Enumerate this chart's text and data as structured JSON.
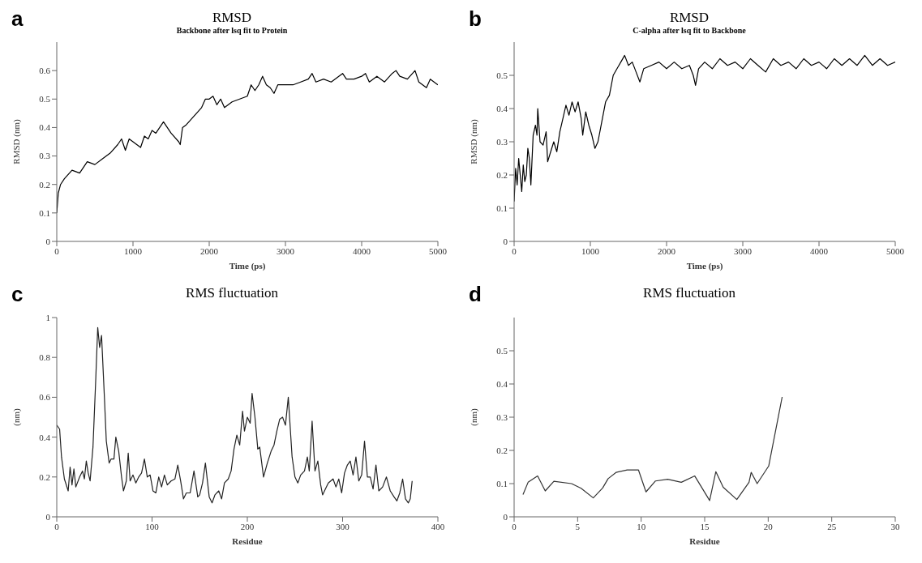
{
  "chart_data": [
    {
      "type": "line",
      "title": "RMSD",
      "subtitle": "Backbone after lsq fit to Protein",
      "xlabel": "Time (ps)",
      "ylabel": "RMSD (nm)",
      "annotations": [
        "a"
      ],
      "marker": "none",
      "xlim": [
        0,
        5000
      ],
      "xticks": [
        0,
        1000,
        2000,
        3000,
        4000,
        5000
      ],
      "ylim": [
        0,
        0.7
      ],
      "yticks": [
        0,
        0.1,
        0.2,
        0.3,
        0.4,
        0.5,
        0.6
      ],
      "x": [
        0,
        20,
        50,
        100,
        200,
        300,
        400,
        500,
        600,
        700,
        800,
        850,
        900,
        950,
        1000,
        1050,
        1100,
        1150,
        1200,
        1250,
        1300,
        1400,
        1500,
        1600,
        1620,
        1650,
        1700,
        1800,
        1900,
        1950,
        2000,
        2050,
        2100,
        2150,
        2200,
        2300,
        2400,
        2500,
        2550,
        2600,
        2650,
        2700,
        2750,
        2800,
        2850,
        2900,
        3000,
        3100,
        3200,
        3300,
        3350,
        3400,
        3500,
        3600,
        3700,
        3750,
        3800,
        3900,
        4000,
        4050,
        4100,
        4200,
        4250,
        4300,
        4400,
        4450,
        4500,
        4600,
        4700,
        4750,
        4800,
        4850,
        4900,
        5000
      ],
      "series": [
        {
          "color": "#000000",
          "values": [
            0.1,
            0.17,
            0.2,
            0.22,
            0.25,
            0.24,
            0.28,
            0.27,
            0.29,
            0.31,
            0.34,
            0.36,
            0.32,
            0.36,
            0.35,
            0.34,
            0.33,
            0.37,
            0.36,
            0.39,
            0.38,
            0.42,
            0.38,
            0.35,
            0.34,
            0.4,
            0.41,
            0.44,
            0.47,
            0.5,
            0.5,
            0.51,
            0.48,
            0.5,
            0.47,
            0.49,
            0.5,
            0.51,
            0.55,
            0.53,
            0.55,
            0.58,
            0.55,
            0.54,
            0.52,
            0.55,
            0.55,
            0.55,
            0.56,
            0.57,
            0.59,
            0.56,
            0.57,
            0.56,
            0.58,
            0.59,
            0.57,
            0.57,
            0.58,
            0.59,
            0.56,
            0.58,
            0.57,
            0.56,
            0.59,
            0.6,
            0.58,
            0.57,
            0.6,
            0.56,
            0.55,
            0.54,
            0.57,
            0.55
          ]
        }
      ]
    },
    {
      "type": "line",
      "title": "RMSD",
      "subtitle": "C-alpha after lsq fit to Backbone",
      "xlabel": "Time (ps)",
      "ylabel": "RMSD (nm)",
      "annotations": [
        "b"
      ],
      "marker": "none",
      "xlim": [
        0,
        5000
      ],
      "xticks": [
        0,
        1000,
        2000,
        3000,
        4000,
        5000
      ],
      "ylim": [
        0,
        0.6
      ],
      "yticks": [
        0,
        0.1,
        0.2,
        0.3,
        0.4,
        0.5
      ],
      "x": [
        0,
        20,
        40,
        60,
        80,
        100,
        120,
        140,
        160,
        180,
        200,
        220,
        250,
        280,
        300,
        310,
        340,
        380,
        420,
        440,
        480,
        520,
        560,
        600,
        640,
        680,
        720,
        760,
        800,
        840,
        880,
        900,
        940,
        980,
        1020,
        1060,
        1100,
        1150,
        1200,
        1250,
        1300,
        1350,
        1400,
        1450,
        1500,
        1550,
        1600,
        1650,
        1700,
        1800,
        1900,
        2000,
        2100,
        2200,
        2300,
        2350,
        2380,
        2420,
        2500,
        2600,
        2700,
        2800,
        2900,
        3000,
        3100,
        3200,
        3300,
        3400,
        3500,
        3600,
        3700,
        3800,
        3900,
        4000,
        4100,
        4200,
        4300,
        4400,
        4500,
        4600,
        4700,
        4800,
        4900,
        5000
      ],
      "series": [
        {
          "color": "#000000",
          "values": [
            0.12,
            0.22,
            0.17,
            0.25,
            0.2,
            0.15,
            0.23,
            0.18,
            0.2,
            0.28,
            0.25,
            0.17,
            0.32,
            0.35,
            0.32,
            0.4,
            0.3,
            0.29,
            0.33,
            0.24,
            0.27,
            0.3,
            0.27,
            0.33,
            0.37,
            0.41,
            0.38,
            0.42,
            0.39,
            0.42,
            0.37,
            0.32,
            0.39,
            0.35,
            0.32,
            0.28,
            0.3,
            0.36,
            0.42,
            0.44,
            0.5,
            0.52,
            0.54,
            0.56,
            0.53,
            0.54,
            0.51,
            0.48,
            0.52,
            0.53,
            0.54,
            0.52,
            0.54,
            0.52,
            0.53,
            0.5,
            0.47,
            0.52,
            0.54,
            0.52,
            0.55,
            0.53,
            0.54,
            0.52,
            0.55,
            0.53,
            0.51,
            0.55,
            0.53,
            0.54,
            0.52,
            0.55,
            0.53,
            0.54,
            0.52,
            0.55,
            0.53,
            0.55,
            0.53,
            0.56,
            0.53,
            0.55,
            0.53,
            0.54
          ]
        }
      ]
    },
    {
      "type": "line",
      "title": "RMS fluctuation",
      "xlabel": "Residue",
      "ylabel": "(nm)",
      "annotations": [
        "c"
      ],
      "marker": "none",
      "xlim": [
        0,
        400
      ],
      "xticks": [
        0,
        100,
        200,
        300,
        400
      ],
      "ylim": [
        0,
        1
      ],
      "yticks": [
        0,
        0.2,
        0.4,
        0.6,
        0.8,
        1
      ],
      "x": [
        0,
        3,
        5,
        8,
        12,
        14,
        16,
        18,
        20,
        24,
        27,
        29,
        31,
        33,
        35,
        38,
        41,
        43,
        45,
        47,
        50,
        52,
        55,
        57,
        60,
        62,
        65,
        68,
        70,
        73,
        75,
        77,
        80,
        83,
        86,
        89,
        92,
        95,
        98,
        101,
        104,
        107,
        110,
        113,
        116,
        120,
        124,
        127,
        130,
        133,
        136,
        140,
        144,
        148,
        150,
        153,
        156,
        160,
        163,
        166,
        170,
        173,
        176,
        180,
        183,
        186,
        189,
        192,
        195,
        197,
        200,
        203,
        205,
        208,
        211,
        213,
        217,
        221,
        225,
        228,
        231,
        234,
        237,
        240,
        243,
        247,
        250,
        253,
        256,
        260,
        263,
        265,
        268,
        271,
        274,
        277,
        279,
        282,
        285,
        290,
        293,
        296,
        299,
        302,
        305,
        308,
        311,
        314,
        317,
        320,
        323,
        326,
        329,
        332,
        335,
        338,
        342,
        346,
        350,
        354,
        357,
        360,
        363,
        366,
        369,
        371,
        373
      ],
      "series": [
        {
          "color": "#222222",
          "values": [
            0.46,
            0.44,
            0.3,
            0.19,
            0.13,
            0.25,
            0.16,
            0.24,
            0.15,
            0.2,
            0.23,
            0.19,
            0.28,
            0.22,
            0.18,
            0.35,
            0.7,
            0.95,
            0.85,
            0.91,
            0.6,
            0.38,
            0.27,
            0.29,
            0.29,
            0.4,
            0.33,
            0.2,
            0.13,
            0.18,
            0.32,
            0.18,
            0.21,
            0.17,
            0.2,
            0.22,
            0.29,
            0.2,
            0.21,
            0.13,
            0.12,
            0.2,
            0.15,
            0.21,
            0.16,
            0.18,
            0.19,
            0.26,
            0.18,
            0.09,
            0.12,
            0.12,
            0.23,
            0.1,
            0.11,
            0.17,
            0.27,
            0.1,
            0.07,
            0.11,
            0.13,
            0.09,
            0.17,
            0.19,
            0.23,
            0.34,
            0.41,
            0.36,
            0.53,
            0.43,
            0.5,
            0.47,
            0.62,
            0.5,
            0.34,
            0.35,
            0.2,
            0.27,
            0.33,
            0.36,
            0.43,
            0.49,
            0.5,
            0.46,
            0.6,
            0.3,
            0.2,
            0.17,
            0.21,
            0.23,
            0.3,
            0.23,
            0.48,
            0.23,
            0.28,
            0.16,
            0.11,
            0.14,
            0.17,
            0.19,
            0.15,
            0.19,
            0.12,
            0.22,
            0.26,
            0.28,
            0.21,
            0.3,
            0.18,
            0.21,
            0.38,
            0.2,
            0.2,
            0.14,
            0.26,
            0.13,
            0.15,
            0.2,
            0.13,
            0.1,
            0.08,
            0.12,
            0.19,
            0.09,
            0.07,
            0.09,
            0.18
          ]
        }
      ]
    },
    {
      "type": "line",
      "title": "RMS fluctuation",
      "xlabel": "Residue",
      "ylabel": "(nm)",
      "annotations": [
        "d"
      ],
      "marker": "none",
      "xlim": [
        0,
        30
      ],
      "xticks": [
        0,
        5,
        10,
        15,
        20,
        25,
        30
      ],
      "ylim": [
        0,
        0.6
      ],
      "yticks": [
        0,
        0.1,
        0.2,
        0.3,
        0.4,
        0.5
      ],
      "x": [
        0.7,
        1.1,
        1.85,
        2.45,
        3.13,
        4.52,
        5.27,
        6.23,
        6.97,
        7.4,
        8.04,
        8.9,
        9.79,
        10.38,
        11.13,
        12.09,
        13.16,
        14.22,
        15.39,
        15.88,
        16.46,
        17.53,
        18.49,
        18.66,
        19.13,
        20.04,
        21.1
      ],
      "series": [
        {
          "color": "#333333",
          "values": [
            0.067,
            0.104,
            0.123,
            0.078,
            0.107,
            0.1,
            0.086,
            0.057,
            0.087,
            0.115,
            0.134,
            0.141,
            0.141,
            0.075,
            0.108,
            0.113,
            0.104,
            0.123,
            0.049,
            0.136,
            0.089,
            0.052,
            0.104,
            0.134,
            0.1,
            0.153,
            0.361
          ]
        }
      ]
    }
  ]
}
